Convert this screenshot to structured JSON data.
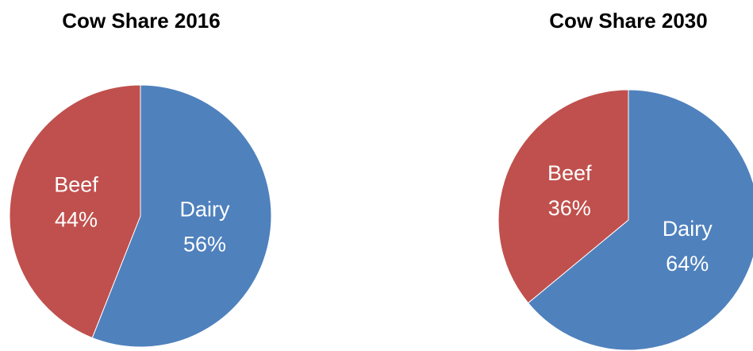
{
  "chart_data": [
    {
      "type": "pie",
      "title": "Cow Share 2016",
      "categories": [
        "Dairy",
        "Beef"
      ],
      "values": [
        56,
        44
      ],
      "value_labels": [
        "56%",
        "44%"
      ],
      "colors": [
        "#4f81bd",
        "#c0504d"
      ]
    },
    {
      "type": "pie",
      "title": "Cow Share 2030",
      "categories": [
        "Dairy",
        "Beef"
      ],
      "values": [
        64,
        36
      ],
      "value_labels": [
        "64%",
        "36%"
      ],
      "colors": [
        "#4f81bd",
        "#c0504d"
      ]
    }
  ]
}
